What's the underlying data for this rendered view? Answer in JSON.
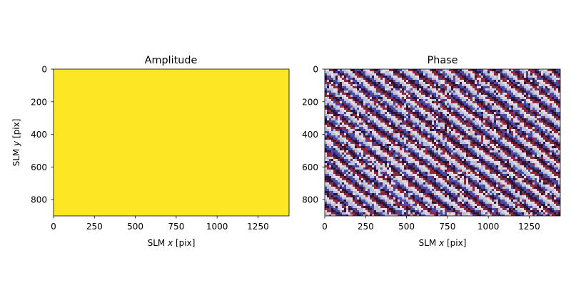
{
  "chart_data": [
    {
      "type": "heatmap",
      "title": "Amplitude",
      "xlabel_prefix": "SLM ",
      "xlabel_var": "x",
      "xlabel_suffix": " [pix]",
      "ylabel_prefix": "SLM ",
      "ylabel_var": "y",
      "ylabel_suffix": " [pix]",
      "xlim": [
        0,
        1440
      ],
      "ylim": [
        900,
        0
      ],
      "x_ticks": [
        0,
        250,
        500,
        750,
        1000,
        1250
      ],
      "y_ticks": [
        0,
        200,
        400,
        600,
        800
      ],
      "fill": "uniform",
      "fill_color": "#fde725",
      "colormap": "viridis"
    },
    {
      "type": "heatmap",
      "title": "Phase",
      "xlabel_prefix": "SLM ",
      "xlabel_var": "x",
      "xlabel_suffix": " [pix]",
      "xlim": [
        0,
        1440
      ],
      "ylim": [
        900,
        0
      ],
      "x_ticks": [
        0,
        250,
        500,
        750,
        1000,
        1250
      ],
      "y_ticks": [
        0,
        200,
        400,
        600,
        800
      ],
      "fill": "diagonal-fringes",
      "colormap": "twilight",
      "colors": [
        "#e2d9e2",
        "#8a2b3f",
        "#2f1436",
        "#4b4aa8",
        "#b9c0d6"
      ]
    }
  ]
}
